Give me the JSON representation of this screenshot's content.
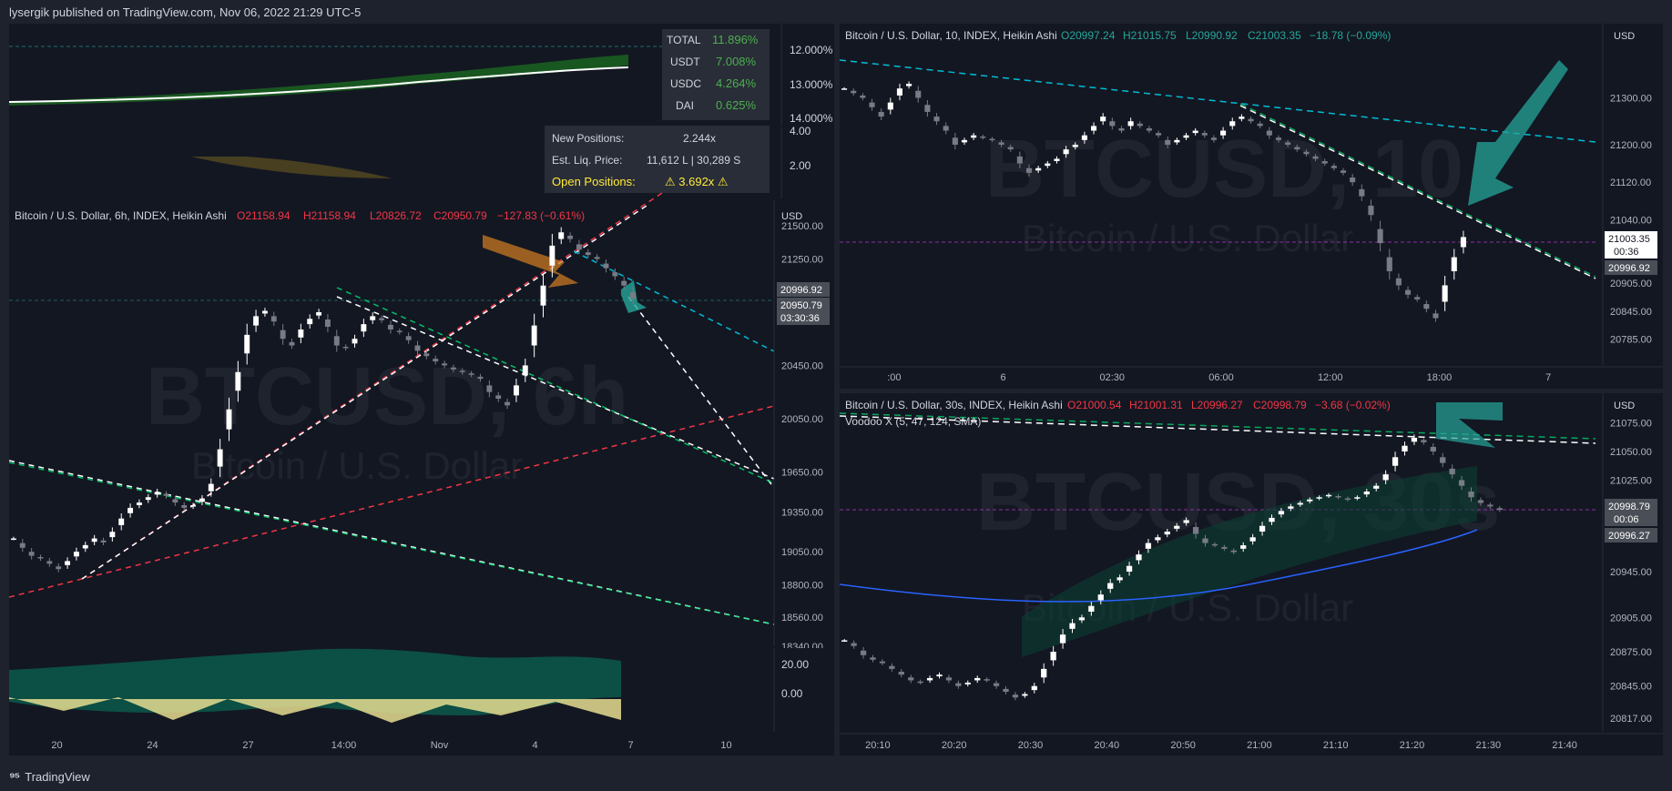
{
  "header": {
    "published_by": "lysergik published on TradingView.com, Nov 06, 2022 21:29 UTC-5"
  },
  "footer": {
    "brand": "TradingView"
  },
  "colors": {
    "bg": "#131722",
    "up": "#ffffff",
    "down": "#787b86",
    "teal": "#26a69a",
    "green": "#00e676",
    "red": "#f23645",
    "purple": "#9c27b0",
    "cyan": "#00bcd4",
    "orange": "#ff9800",
    "blue": "#2962ff",
    "magenta": "#e040fb",
    "yellow": "#ffeb3b"
  },
  "left": {
    "top_table": [
      {
        "label": "TOTAL",
        "value": "11.896%"
      },
      {
        "label": "USDT",
        "value": "7.008%"
      },
      {
        "label": "USDC",
        "value": "4.264%"
      },
      {
        "label": "DAI",
        "value": "0.625%"
      }
    ],
    "top_axis": [
      "12.000%",
      "13.000%",
      "14.000%"
    ],
    "osc_axis": [
      "4.00",
      "2.00"
    ],
    "positions": {
      "new_label": "New Positions:",
      "new_value": "2.244x",
      "liq_label": "Est. Liq. Price:",
      "liq_value": "11,612 L | 30,289 S",
      "open_label": "Open Positions:",
      "open_value": "⚠ 3.692x ⚠"
    },
    "legend": {
      "symbol": "Bitcoin / U.S. Dollar, 6h, INDEX, Heikin Ashi",
      "o": "O21158.94",
      "h": "H21158.94",
      "l": "L20826.72",
      "c": "C20950.79",
      "chg": "−127.83 (−0.61%)"
    },
    "currency": "USD",
    "watermark_1": "BTCUSD, 6h",
    "watermark_2": "Bitcoin / U.S. Dollar",
    "price_tag_1": "20996.92",
    "price_tag_2": "20950.79",
    "price_tag_time": "03:30:36",
    "time_labels": [
      "20",
      "24",
      "27",
      "14:00",
      "Nov",
      "4",
      "7",
      "10"
    ],
    "bottom_axis": [
      "20.00",
      "0.00"
    ]
  },
  "tr": {
    "legend": {
      "symbol": "Bitcoin / U.S. Dollar, 10, INDEX, Heikin Ashi",
      "o": "O20997.24",
      "h": "H21015.75",
      "l": "L20990.92",
      "c": "C21003.35",
      "chg": "−18.78 (−0.09%)"
    },
    "currency": "USD",
    "watermark_1": "BTCUSD, 10",
    "watermark_2": "Bitcoin / U.S. Dollar",
    "price_tag": "21003.35",
    "price_tag_time": "00:36",
    "price_tag_2": "20996.92",
    "time_labels": [
      ":00",
      "6",
      "02:30",
      "06:00",
      "12:00",
      "18:00",
      "7"
    ]
  },
  "br": {
    "legend": {
      "symbol": "Bitcoin / U.S. Dollar, 30s, INDEX, Heikin Ashi",
      "o": "O21000.54",
      "h": "H21001.31",
      "l": "L20996.27",
      "c": "C20998.79",
      "chg": "−3.68 (−0.02%)"
    },
    "indicator": "Voodoo X (5, 47, 124, SMA)",
    "currency": "USD",
    "watermark_1": "BTCUSD, 30s",
    "watermark_2": "Bitcoin / U.S. Dollar",
    "price_tag": "20998.79",
    "price_tag_time": "00:06",
    "price_tag_2": "20996.27",
    "time_labels": [
      "20:10",
      "20:20",
      "20:30",
      "20:40",
      "20:50",
      "21:00",
      "21:10",
      "21:20",
      "21:30",
      "21:40"
    ]
  },
  "chart_data": [
    {
      "type": "candlestick",
      "title": "Bitcoin / U.S. Dollar, 6h, INDEX, Heikin Ashi",
      "ylim": [
        18340,
        21650
      ],
      "yticks": [
        21500.0,
        21250.0,
        20450.0,
        20050.0,
        19650.0,
        19350.0,
        19050.0,
        18800.0,
        18560.0,
        18340.0
      ],
      "xticks": [
        "20",
        "24",
        "27",
        "14:00",
        "Nov",
        "4",
        "7",
        "10"
      ],
      "close": [
        19150,
        19080,
        19020,
        19000,
        18960,
        18920,
        18980,
        19050,
        19100,
        19150,
        19120,
        19200,
        19300,
        19380,
        19420,
        19460,
        19500,
        19470,
        19420,
        19380,
        19400,
        19450,
        19560,
        19820,
        20120,
        20400,
        20680,
        20820,
        20860,
        20780,
        20650,
        20600,
        20720,
        20800,
        20850,
        20740,
        20600,
        20580,
        20650,
        20760,
        20820,
        20790,
        20720,
        20700,
        20640,
        20560,
        20520,
        20480,
        20450,
        20420,
        20400,
        20380,
        20350,
        20250,
        20200,
        20150,
        20300,
        20450,
        20750,
        21050,
        21350,
        21450,
        21400,
        21320,
        21280,
        21250,
        21180,
        21120,
        21050,
        20950
      ]
    },
    {
      "type": "candlestick",
      "title": "Bitcoin / U.S. Dollar, 10, INDEX, Heikin Ashi",
      "ylim": [
        20730,
        21400
      ],
      "yticks": [
        21300.0,
        21200.0,
        21120.0,
        21040.0,
        20965.0,
        20905.0,
        20845.0,
        20785.0
      ],
      "xticks": [
        ":00",
        "6",
        "02:30",
        "06:00",
        "12:00",
        "18:00",
        "7"
      ],
      "close": [
        21320,
        21310,
        21300,
        21280,
        21260,
        21290,
        21320,
        21330,
        21300,
        21270,
        21250,
        21230,
        21200,
        21210,
        21220,
        21215,
        21210,
        21200,
        21190,
        21160,
        21140,
        21150,
        21160,
        21170,
        21190,
        21200,
        21220,
        21240,
        21260,
        21240,
        21230,
        21250,
        21240,
        21230,
        21220,
        21200,
        21210,
        21220,
        21230,
        21220,
        21210,
        21230,
        21250,
        21260,
        21250,
        21240,
        21220,
        21210,
        21200,
        21190,
        21180,
        21170,
        21160,
        21150,
        21140,
        21120,
        21090,
        21050,
        20990,
        20930,
        20900,
        20880,
        20870,
        20850,
        20830,
        20900,
        20960,
        21003
      ]
    },
    {
      "type": "candlestick",
      "title": "Bitcoin / U.S. Dollar, 30s, INDEX, Heikin Ashi",
      "ylim": [
        20805,
        21085
      ],
      "yticks": [
        21075.0,
        21050.0,
        21025.0,
        20945.0,
        20905.0,
        20875.0,
        20845.0,
        20817.0
      ],
      "xticks": [
        "20:10",
        "20:20",
        "20:30",
        "20:40",
        "20:50",
        "21:00",
        "21:10",
        "21:20",
        "21:30",
        "21:40"
      ],
      "close": [
        20885,
        20880,
        20872,
        20868,
        20865,
        20860,
        20855,
        20850,
        20848,
        20852,
        20855,
        20850,
        20845,
        20848,
        20852,
        20850,
        20845,
        20840,
        20835,
        20838,
        20845,
        20860,
        20875,
        20890,
        20900,
        20905,
        20915,
        20925,
        20935,
        20940,
        20950,
        20960,
        20970,
        20975,
        20980,
        20985,
        20990,
        20978,
        20970,
        20968,
        20965,
        20962,
        20968,
        20975,
        20985,
        20992,
        20998,
        21002,
        21005,
        21008,
        21010,
        21012,
        21010,
        21008,
        21010,
        21015,
        21020,
        21030,
        21045,
        21055,
        21062,
        21058,
        21050,
        21040,
        21030,
        21020,
        21010,
        21005,
        21002,
        20999
      ]
    }
  ]
}
